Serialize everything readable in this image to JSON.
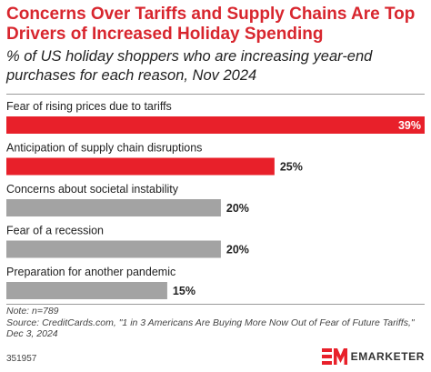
{
  "header": {
    "title": "Concerns Over Tariffs and Supply Chains Are Top Drivers of Increased Holiday Spending",
    "subtitle": "% of US holiday shoppers who are increasing year-end purchases for each reason, Nov 2024"
  },
  "chart_data": {
    "type": "bar",
    "orientation": "horizontal",
    "categories": [
      "Fear of rising prices due to tariffs",
      "Anticipation of supply chain disruptions",
      "Concerns about societal instability",
      "Fear of a recession",
      "Preparation for another pandemic"
    ],
    "values": [
      39,
      25,
      20,
      20,
      15
    ],
    "value_labels": [
      "39%",
      "25%",
      "20%",
      "20%",
      "15%"
    ],
    "bar_colors": [
      "#e8202a",
      "#e8202a",
      "#a3a3a3",
      "#a3a3a3",
      "#a3a3a3"
    ],
    "xlim": [
      0,
      39
    ],
    "grid": false,
    "legend": "none"
  },
  "footer": {
    "note": "Note: n=789",
    "source": "Source: CreditCards.com, \"1 in 3 Americans Are Buying More Now Out of Fear of Future Tariffs,\" Dec 3, 2024",
    "chart_id": "351957",
    "brand": "EMARKETER",
    "brand_color": "#e8202a"
  }
}
